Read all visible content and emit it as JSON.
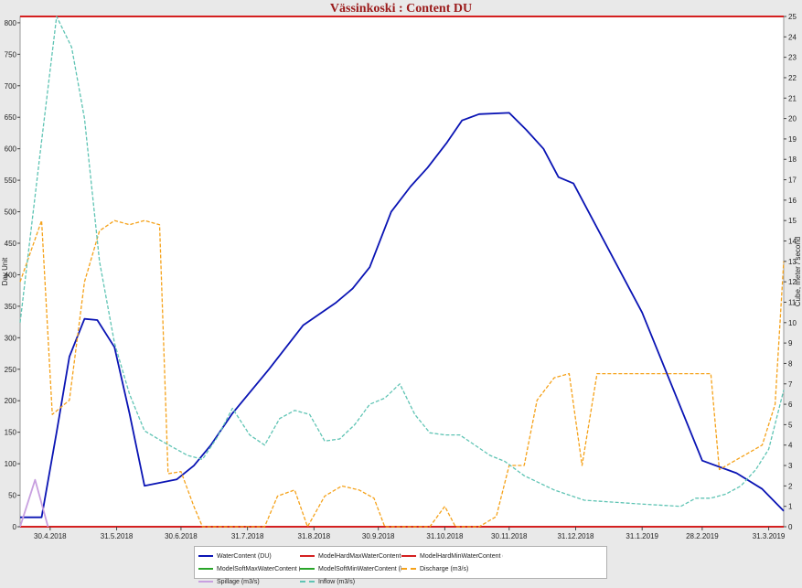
{
  "chart_data": {
    "type": "line",
    "title": "Vässinkoski : Content DU",
    "ylabel_left": "Day Unit",
    "ylabel_right": "Cube, meter / second",
    "ylim_left": [
      0,
      810
    ],
    "ylim_right": [
      0,
      25
    ],
    "x_range": [
      "2018-04-16",
      "2019-04-07"
    ],
    "x_ticks": [
      "30.4.2018",
      "31.5.2018",
      "30.6.2018",
      "31.7.2018",
      "31.8.2018",
      "30.9.2018",
      "31.10.2018",
      "30.11.2018",
      "31.12.2018",
      "31.1.2019",
      "28.2.2019",
      "31.3.2019"
    ],
    "y_ticks_left": [
      0,
      50,
      100,
      150,
      200,
      250,
      300,
      350,
      400,
      450,
      500,
      550,
      600,
      650,
      700,
      750,
      800
    ],
    "y_ticks_right": [
      0,
      1,
      2,
      3,
      4,
      5,
      6,
      7,
      8,
      9,
      10,
      11,
      12,
      13,
      14,
      15,
      16,
      17,
      18,
      19,
      20,
      21,
      22,
      23,
      24,
      25
    ],
    "series": [
      {
        "name": "WaterContent (DU)",
        "axis": "left",
        "color": "#0a14b4",
        "dash": false,
        "points": [
          [
            "2018-04-16",
            15
          ],
          [
            "2018-04-26",
            15
          ],
          [
            "2018-05-03",
            150
          ],
          [
            "2018-05-09",
            270
          ],
          [
            "2018-05-16",
            330
          ],
          [
            "2018-05-22",
            328
          ],
          [
            "2018-05-30",
            285
          ],
          [
            "2018-06-06",
            180
          ],
          [
            "2018-06-13",
            65
          ],
          [
            "2018-06-28",
            75
          ],
          [
            "2018-07-06",
            97
          ],
          [
            "2018-07-14",
            130
          ],
          [
            "2018-07-24",
            180
          ],
          [
            "2018-08-10",
            250
          ],
          [
            "2018-08-26",
            320
          ],
          [
            "2018-09-10",
            355
          ],
          [
            "2018-09-18",
            378
          ],
          [
            "2018-09-26",
            412
          ],
          [
            "2018-10-06",
            500
          ],
          [
            "2018-10-15",
            540
          ],
          [
            "2018-10-23",
            570
          ],
          [
            "2018-11-01",
            610
          ],
          [
            "2018-11-08",
            645
          ],
          [
            "2018-11-16",
            655
          ],
          [
            "2018-11-30",
            657
          ],
          [
            "2018-12-08",
            630
          ],
          [
            "2018-12-16",
            600
          ],
          [
            "2018-12-23",
            555
          ],
          [
            "2018-12-30",
            545
          ],
          [
            "2019-01-31",
            340
          ],
          [
            "2019-02-28",
            105
          ],
          [
            "2019-03-16",
            85
          ],
          [
            "2019-03-28",
            60
          ],
          [
            "2019-04-07",
            25
          ]
        ]
      },
      {
        "name": "ModelHardMaxWaterContent (DU)",
        "axis": "left",
        "color": "#d42020",
        "dash": false,
        "points": [
          [
            "2018-04-16",
            810
          ],
          [
            "2019-04-07",
            810
          ]
        ]
      },
      {
        "name": "ModelHardMinWaterContent (DU)",
        "axis": "left",
        "color": "#d42020",
        "dash": false,
        "points": [
          [
            "2018-04-16",
            0
          ],
          [
            "2019-04-07",
            0
          ]
        ]
      },
      {
        "name": "ModelSoftMaxWaterContent (DU)",
        "axis": "left",
        "color": "#2aa52a",
        "dash": false,
        "points": []
      },
      {
        "name": "ModelSoftMinWaterContent (DU)",
        "axis": "left",
        "color": "#2aa52a",
        "dash": false,
        "points": []
      },
      {
        "name": "Discharge (m3/s)",
        "axis": "right",
        "color": "#f5a21a",
        "dash": true,
        "points": [
          [
            "2018-04-16",
            12
          ],
          [
            "2018-04-26",
            15
          ],
          [
            "2018-05-01",
            5.5
          ],
          [
            "2018-05-09",
            6.2
          ],
          [
            "2018-05-16",
            12
          ],
          [
            "2018-05-23",
            14.5
          ],
          [
            "2018-05-30",
            15
          ],
          [
            "2018-06-06",
            14.8
          ],
          [
            "2018-06-13",
            15
          ],
          [
            "2018-06-20",
            14.8
          ],
          [
            "2018-06-24",
            2.6
          ],
          [
            "2018-06-30",
            2.7
          ],
          [
            "2018-07-06",
            1
          ],
          [
            "2018-07-10",
            0
          ],
          [
            "2018-08-08",
            0
          ],
          [
            "2018-08-14",
            1.5
          ],
          [
            "2018-08-22",
            1.8
          ],
          [
            "2018-08-28",
            0
          ],
          [
            "2018-09-05",
            1.5
          ],
          [
            "2018-09-13",
            2
          ],
          [
            "2018-09-21",
            1.8
          ],
          [
            "2018-09-28",
            1.4
          ],
          [
            "2018-10-03",
            0
          ],
          [
            "2018-10-24",
            0
          ],
          [
            "2018-10-31",
            1
          ],
          [
            "2018-11-05",
            0
          ],
          [
            "2018-11-16",
            0
          ],
          [
            "2018-11-24",
            0.5
          ],
          [
            "2018-11-30",
            3
          ],
          [
            "2018-12-07",
            3
          ],
          [
            "2018-12-13",
            6.2
          ],
          [
            "2018-12-21",
            7.3
          ],
          [
            "2018-12-28",
            7.5
          ],
          [
            "2019-01-03",
            3
          ],
          [
            "2019-01-10",
            7.5
          ],
          [
            "2019-03-04",
            7.5
          ],
          [
            "2019-03-08",
            2.8
          ],
          [
            "2019-03-28",
            4
          ],
          [
            "2019-04-03",
            6
          ],
          [
            "2019-04-07",
            13
          ]
        ]
      },
      {
        "name": "Spillage (m3/s)",
        "axis": "right",
        "color": "#c8a0e0",
        "dash": false,
        "points": [
          [
            "2018-04-16",
            0
          ],
          [
            "2018-04-23",
            2.3
          ],
          [
            "2018-04-29",
            0
          ]
        ]
      },
      {
        "name": "Inflow (m3/s)",
        "axis": "right",
        "color": "#5fc4b4",
        "dash": true,
        "points": [
          [
            "2018-04-16",
            10
          ],
          [
            "2018-04-25",
            18
          ],
          [
            "2018-05-03",
            25
          ],
          [
            "2018-05-10",
            23.5
          ],
          [
            "2018-05-16",
            20
          ],
          [
            "2018-05-23",
            13
          ],
          [
            "2018-05-30",
            9
          ],
          [
            "2018-06-06",
            6.5
          ],
          [
            "2018-06-13",
            4.7
          ],
          [
            "2018-06-21",
            4.2
          ],
          [
            "2018-07-03",
            3.5
          ],
          [
            "2018-07-10",
            3.3
          ],
          [
            "2018-07-17",
            4.4
          ],
          [
            "2018-07-24",
            5.8
          ],
          [
            "2018-08-01",
            4.5
          ],
          [
            "2018-08-08",
            4
          ],
          [
            "2018-08-15",
            5.3
          ],
          [
            "2018-08-22",
            5.7
          ],
          [
            "2018-08-29",
            5.5
          ],
          [
            "2018-09-05",
            4.2
          ],
          [
            "2018-09-12",
            4.3
          ],
          [
            "2018-09-19",
            5
          ],
          [
            "2018-09-26",
            6
          ],
          [
            "2018-10-03",
            6.3
          ],
          [
            "2018-10-10",
            7
          ],
          [
            "2018-10-17",
            5.5
          ],
          [
            "2018-10-24",
            4.6
          ],
          [
            "2018-10-31",
            4.5
          ],
          [
            "2018-11-07",
            4.5
          ],
          [
            "2018-11-14",
            4
          ],
          [
            "2018-11-21",
            3.5
          ],
          [
            "2018-11-28",
            3.2
          ],
          [
            "2018-12-07",
            2.5
          ],
          [
            "2018-12-21",
            1.8
          ],
          [
            "2019-01-04",
            1.3
          ],
          [
            "2019-01-18",
            1.2
          ],
          [
            "2019-02-01",
            1.1
          ],
          [
            "2019-02-18",
            1
          ],
          [
            "2019-02-25",
            1.4
          ],
          [
            "2019-03-04",
            1.4
          ],
          [
            "2019-03-11",
            1.6
          ],
          [
            "2019-03-18",
            2
          ],
          [
            "2019-03-25",
            2.8
          ],
          [
            "2019-03-31",
            3.8
          ],
          [
            "2019-04-07",
            6.7
          ]
        ]
      }
    ],
    "legend_position": "bottom",
    "grid": false
  }
}
